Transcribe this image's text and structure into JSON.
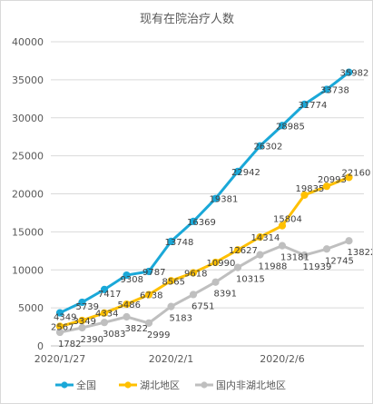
{
  "chart_data": {
    "type": "line",
    "title": "现有在院治疗人数",
    "x": [
      "2020/1/27",
      "2020/1/28",
      "2020/1/29",
      "2020/1/30",
      "2020/1/31",
      "2020/2/1",
      "2020/2/2",
      "2020/2/3",
      "2020/2/4",
      "2020/2/5",
      "2020/2/6",
      "2020/2/7",
      "2020/2/8",
      "2020/2/9"
    ],
    "x_tick_labels": [
      "2020/1/27",
      "2020/2/1",
      "2020/2/6"
    ],
    "ylim": [
      0,
      40000
    ],
    "y_ticks": [
      "0",
      "5000",
      "10000",
      "15000",
      "20000",
      "25000",
      "30000",
      "35000",
      "40000"
    ],
    "grid": true,
    "legend_position": "bottom",
    "series": [
      {
        "name": "全国",
        "color": "#1aa8d8",
        "values": [
          4349,
          5739,
          7417,
          9308,
          9787,
          13748,
          16369,
          19381,
          22942,
          26302,
          28985,
          31774,
          33738,
          35982
        ]
      },
      {
        "name": "湖北地区",
        "color": "#ffc000",
        "values": [
          2567,
          3349,
          4334,
          5486,
          6738,
          8565,
          9618,
          10990,
          12627,
          14314,
          15804,
          19835,
          20993,
          22160
        ]
      },
      {
        "name": "国内非湖北地区",
        "color": "#bfbfbf",
        "values": [
          1782,
          2390,
          3083,
          3822,
          2999,
          5183,
          6751,
          8391,
          10315,
          11988,
          13181,
          11939,
          12745,
          13822
        ]
      }
    ]
  }
}
